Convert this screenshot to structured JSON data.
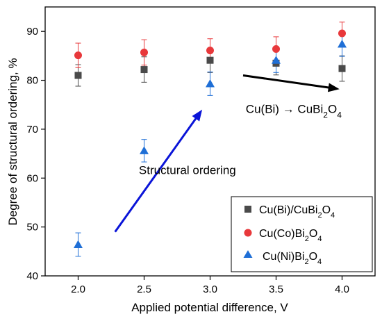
{
  "chart_data": {
    "type": "scatter",
    "xlabel": "Applied potential difference, V",
    "ylabel": "Degree of structural ordering, %",
    "xlim": [
      1.75,
      4.25
    ],
    "ylim": [
      40,
      95
    ],
    "xticks": [
      2.0,
      2.5,
      3.0,
      3.5,
      4.0
    ],
    "xtick_labels": [
      "2.0",
      "2.5",
      "3.0",
      "3.5",
      "4.0"
    ],
    "yticks": [
      40,
      50,
      60,
      70,
      80,
      90
    ],
    "ytick_labels": [
      "40",
      "50",
      "60",
      "70",
      "80",
      "90"
    ],
    "grid": false,
    "legend_position": "bottom-right",
    "series": [
      {
        "key": "cubi",
        "marker": "square",
        "color": "#4a4a4a",
        "x": [
          2.0,
          2.5,
          3.0,
          3.5,
          4.0
        ],
        "y": [
          81.0,
          82.2,
          84.1,
          83.5,
          82.4
        ],
        "err": [
          2.2,
          2.6,
          2.5,
          2.4,
          2.6
        ]
      },
      {
        "key": "cuco",
        "marker": "circle",
        "color": "#e8383b",
        "x": [
          2.0,
          2.5,
          3.0,
          3.5,
          4.0
        ],
        "y": [
          85.1,
          85.7,
          86.1,
          86.4,
          89.6
        ],
        "err": [
          2.5,
          2.6,
          2.4,
          2.5,
          2.3
        ]
      },
      {
        "key": "cuni",
        "marker": "triangle",
        "color": "#1f6fd6",
        "x": [
          2.0,
          2.5,
          3.0,
          3.5,
          4.0
        ],
        "y": [
          46.4,
          65.6,
          79.3,
          84.1,
          87.4
        ],
        "err": [
          2.4,
          2.3,
          2.4,
          2.5,
          2.5
        ]
      }
    ],
    "annotations": {
      "arrow_top": {
        "start": [
          3.25,
          81.0
        ],
        "end": [
          3.98,
          78.2
        ],
        "color": "#000000",
        "label_main": "Cu(Bi) → CuBi",
        "label_sub1": "2",
        "label_mid": "O",
        "label_sub2": "4",
        "label_anchor": [
          3.27,
          73.3
        ]
      },
      "arrow_mid": {
        "start": [
          2.28,
          49.0
        ],
        "end": [
          2.94,
          74.0
        ],
        "color": "#0a14d8",
        "label": "Structural ordering",
        "label_anchor": [
          2.46,
          60.8
        ]
      }
    },
    "legend": [
      {
        "series": "cubi",
        "main": "Cu(Bi)/CuBi",
        "sub1": "2",
        "mid": "O",
        "sub2": "4"
      },
      {
        "series": "cuco",
        "main": "Cu(Co)Bi",
        "sub1": "2",
        "mid": "O",
        "sub2": "4"
      },
      {
        "series": "cuni",
        "main": "Cu(Ni)Bi",
        "sub1": "2",
        "mid": "O",
        "sub2": "4"
      }
    ]
  }
}
